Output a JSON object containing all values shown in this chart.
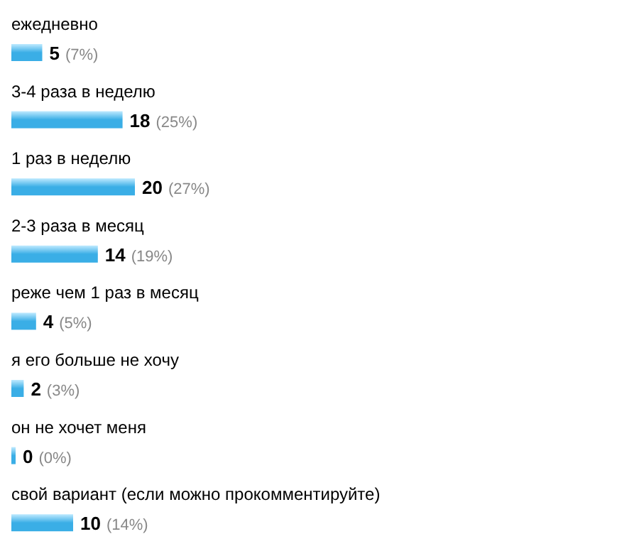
{
  "chart_data": {
    "type": "bar",
    "orientation": "horizontal",
    "categories": [
      "ежедневно",
      "3-4 раза в неделю",
      "1 раз в неделю",
      "2-3 раза в месяц",
      "реже чем 1 раз в месяц",
      "я его больше не хочу",
      "он не хочет меня",
      "свой вариант (если можно прокомментируйте)"
    ],
    "values": [
      5,
      18,
      20,
      14,
      4,
      2,
      0,
      10
    ],
    "value_labels": [
      "5 (7%)",
      "18 (25%)",
      "20 (27%)",
      "14 (19%)",
      "4 (5%)",
      "2 (3%)",
      "0 (0%)",
      "10 (14%)"
    ],
    "color": "#3aaee6"
  }
}
